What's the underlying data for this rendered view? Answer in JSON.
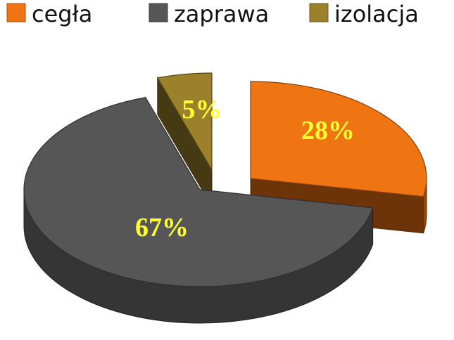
{
  "chart_data": {
    "type": "pie",
    "style": "3d-exploded",
    "legend_position": "top",
    "categories": [
      "cegła",
      "zaprawa",
      "izolacja"
    ],
    "values": [
      28,
      67,
      5
    ],
    "labels": [
      "28%",
      "67%",
      "5%"
    ],
    "colors": [
      "#ef7412",
      "#565656",
      "#9c812c"
    ]
  }
}
